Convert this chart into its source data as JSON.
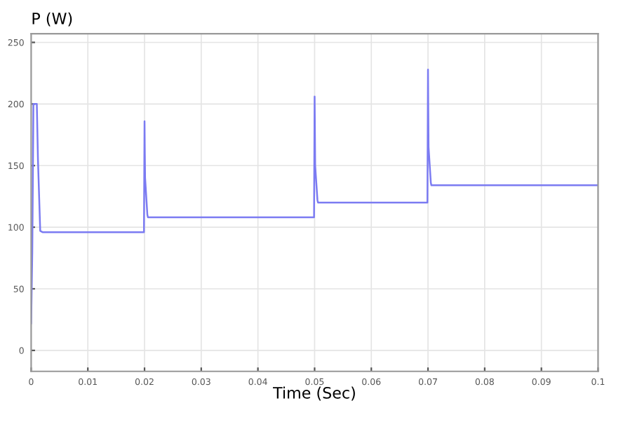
{
  "chart_data": {
    "type": "line",
    "ylabel": "P (W)",
    "xlabel": "Time (Sec)",
    "x": [
      0,
      0.0002,
      0.0004,
      0.0006,
      0.001,
      0.0012,
      0.0016,
      0.002,
      0.0199,
      0.02,
      0.02005,
      0.0201,
      0.0205,
      0.0206,
      0.0499,
      0.05,
      0.05005,
      0.0501,
      0.0505,
      0.0506,
      0.0699,
      0.07,
      0.07005,
      0.0701,
      0.0705,
      0.0706,
      0.1
    ],
    "series": [
      {
        "color": "#7b7bf2",
        "values": [
          22,
          80,
          200,
          200,
          200,
          155,
          97,
          96,
          96,
          186,
          160,
          140,
          110,
          108,
          108,
          206,
          178,
          150,
          122,
          120,
          120,
          228,
          195,
          165,
          136,
          134,
          134
        ]
      }
    ],
    "xlim": [
      0,
      0.1
    ],
    "xticks": [
      0,
      0.01,
      0.02,
      0.03,
      0.04,
      0.05,
      0.06,
      0.07,
      0.08,
      0.09,
      0.1
    ],
    "ylim": [
      -17,
      257
    ],
    "yticks": [
      0,
      50,
      100,
      150,
      200,
      250
    ],
    "grid": true,
    "legend": false
  }
}
